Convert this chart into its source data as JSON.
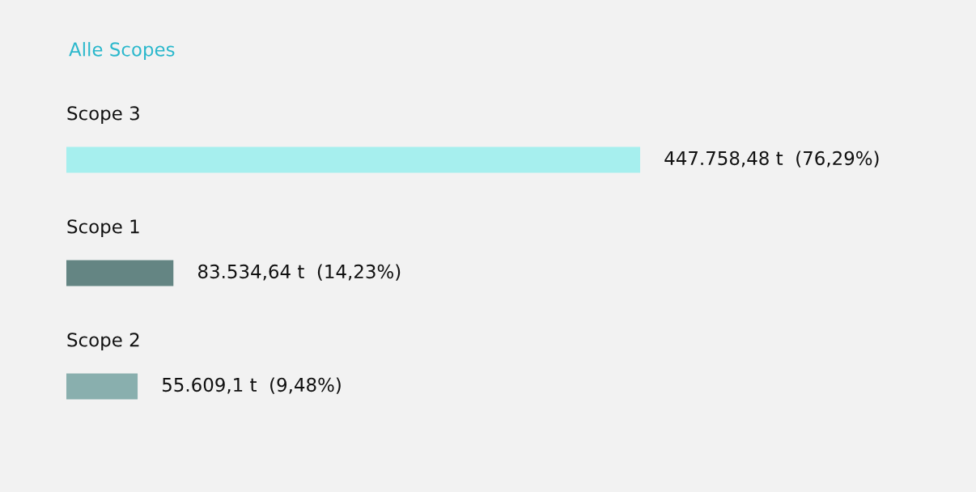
{
  "chart_data": {
    "type": "bar",
    "orientation": "horizontal",
    "title": "Alle Scopes",
    "categories": [
      "Scope 3",
      "Scope 1",
      "Scope 2"
    ],
    "values": [
      447758.48,
      83534.64,
      55609.1
    ],
    "colors": [
      "#a6efee",
      "#648583",
      "#89afae"
    ],
    "value_labels": [
      "447.758,48 t  (76,29%)",
      "83.534,64 t  (14,23%)",
      "55.609,1 t  (9,48%)"
    ]
  }
}
